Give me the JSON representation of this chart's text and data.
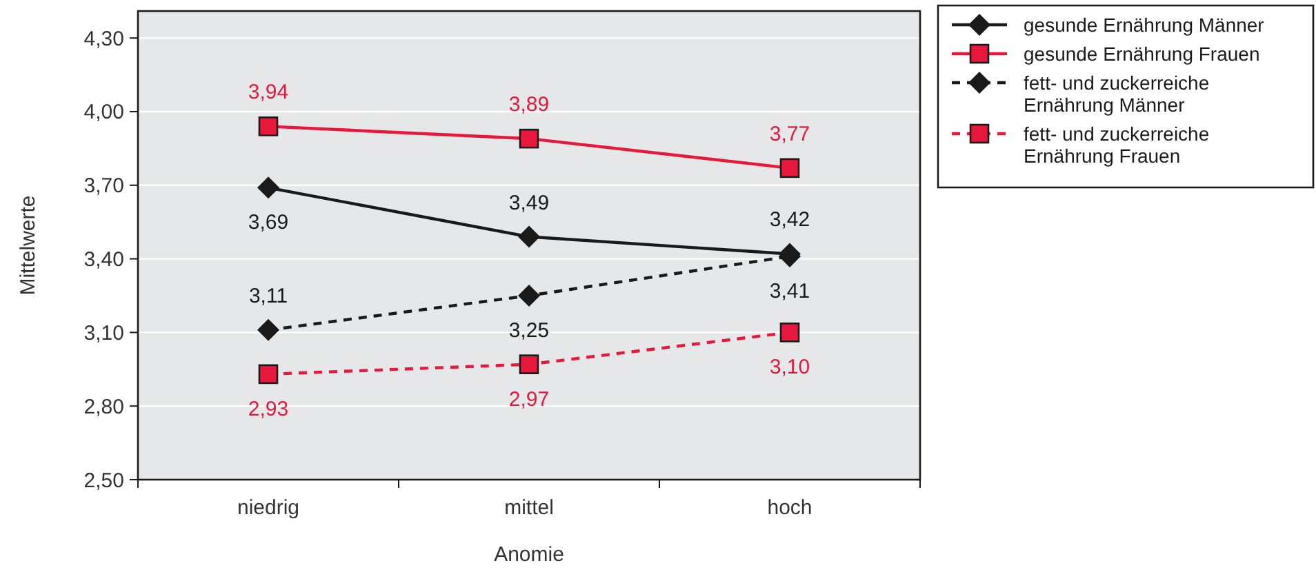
{
  "chart_data": {
    "type": "line",
    "xlabel": "Anomie",
    "ylabel": "Mittelwerte",
    "categories": [
      "niedrig",
      "mittel",
      "hoch"
    ],
    "series": [
      {
        "name": "gesunde Ernährung Männer",
        "color": "#1a1a1a",
        "values": [
          3.69,
          3.49,
          3.42
        ],
        "value_labels": [
          "3,69",
          "3,49",
          "3,42"
        ],
        "marker": "diamond",
        "line_style": "solid"
      },
      {
        "name": "gesunde Ernährung Frauen",
        "color": "#e8173c",
        "values": [
          3.94,
          3.89,
          3.77
        ],
        "value_labels": [
          "3,94",
          "3,89",
          "3,77"
        ],
        "marker": "square",
        "line_style": "solid"
      },
      {
        "name": "fett- und zuckerreiche Ernährung Männer",
        "color": "#1a1a1a",
        "values": [
          3.11,
          3.25,
          3.41
        ],
        "value_labels": [
          "3,11",
          "3,25",
          "3,41"
        ],
        "marker": "diamond",
        "line_style": "dashed"
      },
      {
        "name": "fett- und zuckerreiche Ernährung Frauen",
        "color": "#e8173c",
        "values": [
          2.93,
          2.97,
          3.1
        ],
        "value_labels": [
          "2,93",
          "2,97",
          "3,10"
        ],
        "marker": "square",
        "line_style": "dashed"
      }
    ],
    "ylim": [
      2.5,
      4.41
    ],
    "yticks": [
      {
        "value": 2.5,
        "label": "2,50"
      },
      {
        "value": 2.8,
        "label": "2,80"
      },
      {
        "value": 3.1,
        "label": "3,10"
      },
      {
        "value": 3.4,
        "label": "3,40"
      },
      {
        "value": 3.7,
        "label": "3,70"
      },
      {
        "value": 4.0,
        "label": "4,00"
      },
      {
        "value": 4.3,
        "label": "4,30"
      }
    ],
    "grid": "y",
    "legend": "right"
  }
}
